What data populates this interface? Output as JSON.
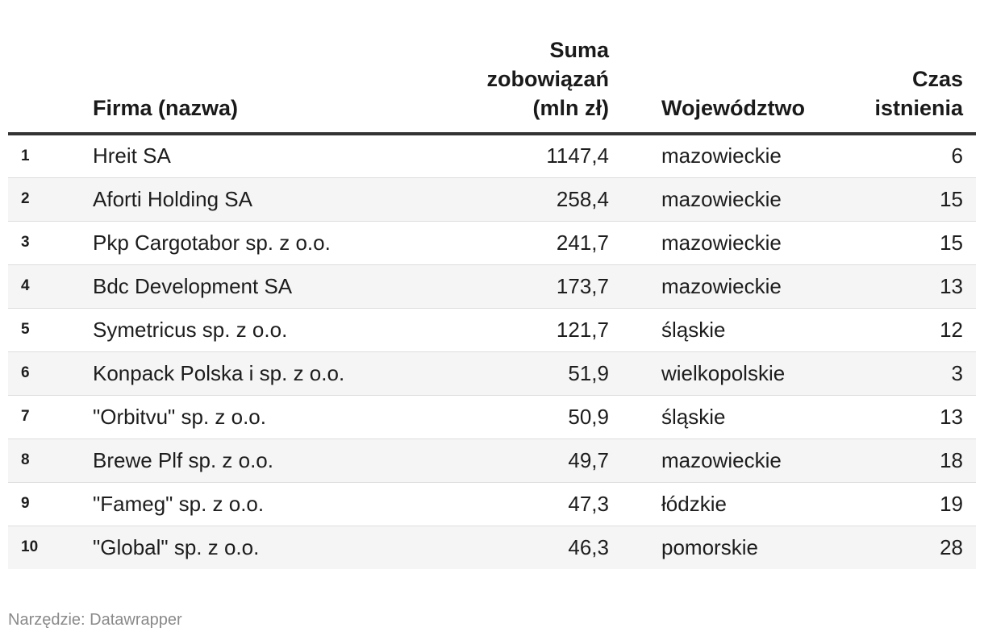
{
  "chart_data": {
    "type": "table",
    "columns": [
      {
        "key": "rank",
        "label": ""
      },
      {
        "key": "firma",
        "label_lines": [
          "Firma (nazwa)"
        ]
      },
      {
        "key": "suma",
        "label_lines": [
          "Suma",
          "zobowiązań",
          "(mln zł)"
        ]
      },
      {
        "key": "woj",
        "label_lines": [
          "Województwo"
        ]
      },
      {
        "key": "czas",
        "label_lines": [
          "Czas",
          "istnienia"
        ]
      }
    ],
    "rows": [
      {
        "rank": "1",
        "firma": "Hreit SA",
        "suma": "1147,4",
        "woj": "mazowieckie",
        "czas": "6"
      },
      {
        "rank": "2",
        "firma": "Aforti Holding SA",
        "suma": "258,4",
        "woj": "mazowieckie",
        "czas": "15"
      },
      {
        "rank": "3",
        "firma": "Pkp Cargotabor sp. z o.o.",
        "suma": "241,7",
        "woj": "mazowieckie",
        "czas": "15"
      },
      {
        "rank": "4",
        "firma": "Bdc Development SA",
        "suma": "173,7",
        "woj": "mazowieckie",
        "czas": "13"
      },
      {
        "rank": "5",
        "firma": "Symetricus sp. z o.o.",
        "suma": "121,7",
        "woj": "śląskie",
        "czas": "12"
      },
      {
        "rank": "6",
        "firma": "Konpack Polska i sp. z o.o.",
        "suma": "51,9",
        "woj": "wielkopolskie",
        "czas": "3"
      },
      {
        "rank": "7",
        "firma": "\"Orbitvu\" sp. z o.o.",
        "suma": "50,9",
        "woj": "śląskie",
        "czas": "13"
      },
      {
        "rank": "8",
        "firma": "Brewe Plf sp. z o.o.",
        "suma": "49,7",
        "woj": "mazowieckie",
        "czas": "18"
      },
      {
        "rank": "9",
        "firma": "\"Fameg\" sp. z o.o.",
        "suma": "47,3",
        "woj": "łódzkie",
        "czas": "19"
      },
      {
        "rank": "10",
        "firma": "\"Global\" sp. z o.o.",
        "suma": "46,3",
        "woj": "pomorskie",
        "czas": "28"
      }
    ],
    "source_note": "Narzędzie: Datawrapper"
  },
  "colors": {
    "header_rule": "#333333",
    "row_alt_background": "#f5f5f5",
    "row_divider": "#dddddd",
    "source_text": "#8a8a8a"
  }
}
